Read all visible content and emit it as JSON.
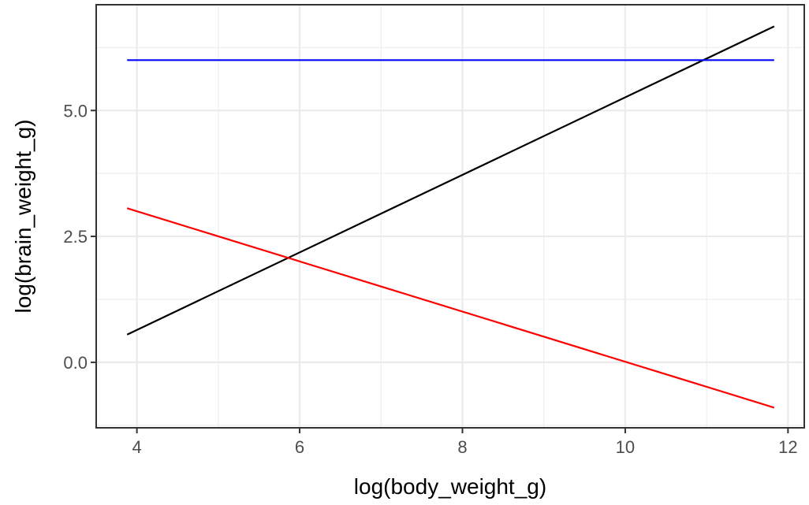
{
  "chart_data": {
    "type": "line",
    "title": "",
    "xlabel": "log(body_weight_g)",
    "ylabel": "log(brain_weight_g)",
    "xlim": [
      3.5,
      12.2
    ],
    "ylim": [
      -1.3,
      7.1
    ],
    "x_ticks": [
      4,
      6,
      8,
      10,
      12
    ],
    "x_tick_labels": [
      "4",
      "6",
      "8",
      "10",
      "12"
    ],
    "y_ticks": [
      0,
      2.5,
      5
    ],
    "y_tick_labels": [
      "0.0",
      "2.5",
      "5.0"
    ],
    "grid": true,
    "legend": "none",
    "series": [
      {
        "color": "#000000",
        "x": [
          3.88,
          11.83
        ],
        "y": [
          0.55,
          6.67
        ]
      },
      {
        "color": "#ff0000",
        "x": [
          3.88,
          11.83
        ],
        "y": [
          3.06,
          -0.9
        ]
      },
      {
        "color": "#0000ff",
        "x": [
          3.88,
          11.83
        ],
        "y": [
          6.0,
          6.0
        ]
      }
    ]
  }
}
